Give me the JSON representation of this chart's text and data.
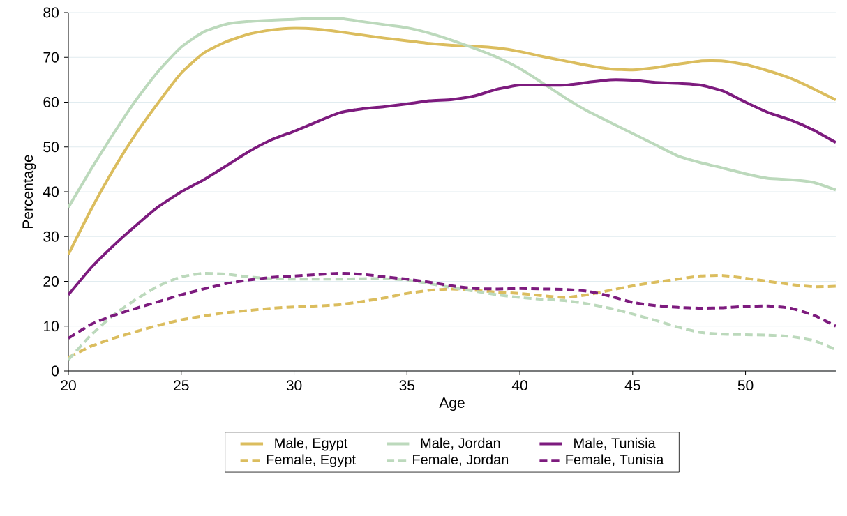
{
  "chart_data": {
    "type": "line",
    "xlabel": "Age",
    "ylabel": "Percentage",
    "x": [
      20,
      21,
      22,
      23,
      24,
      25,
      26,
      27,
      28,
      29,
      30,
      31,
      32,
      33,
      34,
      35,
      36,
      37,
      38,
      39,
      40,
      41,
      42,
      43,
      44,
      45,
      46,
      47,
      48,
      49,
      50,
      51,
      52,
      53,
      54
    ],
    "series": [
      {
        "name": "Male, Egypt",
        "color": "#dbbd5e",
        "line_style": "solid",
        "values": [
          26,
          36,
          45,
          53,
          60,
          66.5,
          71,
          73.5,
          75.2,
          76.1,
          76.5,
          76.3,
          75.7,
          75,
          74.3,
          73.7,
          73.1,
          72.7,
          72.5,
          72.1,
          71.3,
          70.2,
          69.2,
          68.2,
          67.4,
          67.2,
          67.7,
          68.5,
          69.2,
          69.2,
          68.4,
          67,
          65.3,
          63,
          60.5
        ]
      },
      {
        "name": "Male, Jordan",
        "color": "#bcd9bc",
        "line_style": "solid",
        "values": [
          36.5,
          45,
          53,
          60.5,
          67,
          72.3,
          75.7,
          77.4,
          78,
          78.3,
          78.5,
          78.7,
          78.7,
          78,
          77.3,
          76.6,
          75.4,
          73.8,
          72,
          70,
          67.5,
          64.3,
          61,
          58,
          55.5,
          53,
          50.5,
          48,
          46.5,
          45.3,
          44,
          43,
          42.7,
          42.1,
          40.4
        ]
      },
      {
        "name": "Male, Tunisia",
        "color": "#7d1b7e",
        "line_style": "solid",
        "values": [
          17,
          23,
          28,
          32.5,
          36.7,
          40,
          42.7,
          45.8,
          49,
          51.6,
          53.5,
          55.6,
          57.6,
          58.5,
          59,
          59.6,
          60.3,
          60.6,
          61.4,
          62.9,
          63.8,
          63.8,
          63.8,
          64.4,
          65,
          64.9,
          64.4,
          64.2,
          63.8,
          62.5,
          60,
          57.7,
          56,
          53.8,
          51
        ]
      },
      {
        "name": "Female, Egypt",
        "color": "#dbbd5e",
        "line_style": "dashed",
        "values": [
          3,
          5.5,
          7.3,
          8.8,
          10.2,
          11.4,
          12.3,
          13,
          13.5,
          14,
          14.3,
          14.5,
          14.8,
          15.5,
          16.3,
          17.3,
          18,
          18.3,
          18,
          17.6,
          17.3,
          16.8,
          16.4,
          17,
          18,
          19,
          19.8,
          20.5,
          21.2,
          21.3,
          20.7,
          20,
          19.3,
          18.8,
          18.9
        ]
      },
      {
        "name": "Female, Jordan",
        "color": "#bcd9bc",
        "line_style": "dashed",
        "values": [
          2.5,
          8,
          12.5,
          16,
          19,
          21,
          21.8,
          21.6,
          21,
          20.6,
          20.5,
          20.5,
          20.5,
          20.6,
          20.6,
          20.3,
          19.5,
          18.6,
          17.8,
          17,
          16.4,
          16,
          15.7,
          15,
          14,
          12.7,
          11.3,
          9.8,
          8.6,
          8.2,
          8.1,
          8,
          7.7,
          6.8,
          4.8
        ]
      },
      {
        "name": "Female, Tunisia",
        "color": "#7d1b7e",
        "line_style": "dashed",
        "values": [
          7.3,
          10.4,
          12.4,
          14,
          15.5,
          17,
          18.3,
          19.5,
          20.3,
          20.9,
          21.2,
          21.5,
          21.8,
          21.6,
          21,
          20.5,
          19.8,
          19,
          18.4,
          18.3,
          18.4,
          18.3,
          18.2,
          17.8,
          16.7,
          15.3,
          14.6,
          14.2,
          14,
          14.1,
          14.4,
          14.5,
          14,
          12.5,
          10
        ]
      }
    ],
    "xlim": [
      20,
      54
    ],
    "ylim": [
      0,
      80
    ],
    "xticks": [
      20,
      25,
      30,
      35,
      40,
      45,
      50
    ],
    "yticks": [
      0,
      10,
      20,
      30,
      40,
      50,
      60,
      70,
      80
    ],
    "grid": "y",
    "legend": "bottom"
  }
}
